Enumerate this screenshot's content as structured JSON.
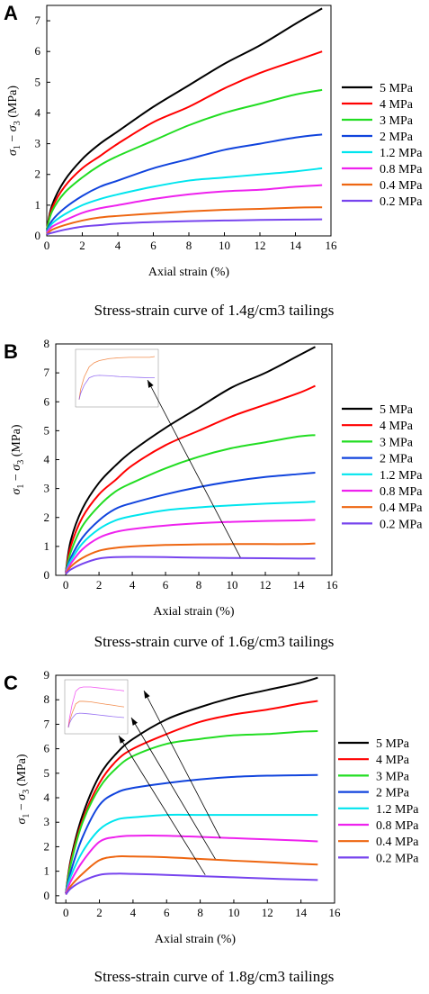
{
  "chart_data": [
    {
      "panel": "A",
      "type": "line",
      "caption": "Stress-strain curve of 1.4g/cm3 tailings",
      "xlabel": "Axial strain (%)",
      "ylabel": "σ1 − σ3 (MPa)",
      "xlim": [
        0,
        16
      ],
      "ylim": [
        0,
        7.5
      ],
      "xticks": [
        "0",
        "2",
        "4",
        "6",
        "8",
        "10",
        "12",
        "14",
        "16"
      ],
      "yticks": [
        "0",
        "1",
        "2",
        "3",
        "4",
        "5",
        "6",
        "7"
      ],
      "x": [
        0,
        0.3,
        1,
        2,
        3,
        4,
        6,
        8,
        10,
        12,
        14,
        15.5
      ],
      "series": [
        {
          "name": "5 MPa",
          "color": "#000000",
          "values": [
            0.2,
            1.0,
            1.8,
            2.5,
            3.0,
            3.4,
            4.2,
            4.9,
            5.6,
            6.2,
            6.9,
            7.4
          ]
        },
        {
          "name": "4 MPa",
          "color": "#ff0000",
          "values": [
            0.2,
            0.9,
            1.6,
            2.2,
            2.6,
            3.0,
            3.7,
            4.2,
            4.8,
            5.3,
            5.7,
            6.0
          ]
        },
        {
          "name": "3 MPa",
          "color": "#22dd22",
          "values": [
            0.2,
            0.8,
            1.4,
            1.9,
            2.3,
            2.6,
            3.1,
            3.6,
            4.0,
            4.3,
            4.6,
            4.75
          ]
        },
        {
          "name": "2 MPa",
          "color": "#1144dd",
          "values": [
            0.15,
            0.5,
            0.9,
            1.3,
            1.6,
            1.8,
            2.2,
            2.5,
            2.8,
            3.0,
            3.2,
            3.3
          ]
        },
        {
          "name": "1.2 MPa",
          "color": "#00e5ee",
          "values": [
            0.1,
            0.4,
            0.7,
            1.0,
            1.2,
            1.35,
            1.6,
            1.8,
            1.9,
            2.0,
            2.1,
            2.2
          ]
        },
        {
          "name": "0.8 MPa",
          "color": "#ee22ee",
          "values": [
            0.1,
            0.3,
            0.5,
            0.75,
            0.9,
            1.0,
            1.2,
            1.35,
            1.45,
            1.5,
            1.6,
            1.65
          ]
        },
        {
          "name": "0.4 MPa",
          "color": "#ee6611",
          "values": [
            0.05,
            0.2,
            0.35,
            0.5,
            0.6,
            0.65,
            0.73,
            0.8,
            0.85,
            0.88,
            0.92,
            0.93
          ]
        },
        {
          "name": "0.2 MPa",
          "color": "#7744ee",
          "values": [
            0.05,
            0.1,
            0.2,
            0.3,
            0.35,
            0.4,
            0.45,
            0.48,
            0.5,
            0.52,
            0.53,
            0.54
          ]
        }
      ]
    },
    {
      "panel": "B",
      "type": "line",
      "caption": "Stress-strain curve of 1.6g/cm3 tailings",
      "xlabel": "Axial strain (%)",
      "ylabel": "σ1 − σ3 (MPa)",
      "xlim": [
        -0.6,
        16
      ],
      "ylim": [
        0,
        8
      ],
      "xticks": [
        "0",
        "2",
        "4",
        "6",
        "8",
        "10",
        "12",
        "14",
        "16"
      ],
      "yticks": [
        "0",
        "1",
        "2",
        "3",
        "4",
        "5",
        "6",
        "7",
        "8"
      ],
      "x": [
        0,
        0.3,
        1,
        2,
        3,
        4,
        6,
        8,
        10,
        12,
        14,
        15
      ],
      "series": [
        {
          "name": "5 MPa",
          "color": "#000000",
          "values": [
            0.1,
            1.2,
            2.3,
            3.2,
            3.8,
            4.3,
            5.1,
            5.8,
            6.5,
            7.0,
            7.6,
            7.9
          ]
        },
        {
          "name": "4 MPa",
          "color": "#ff0000",
          "values": [
            0.1,
            1.0,
            2.0,
            2.8,
            3.3,
            3.8,
            4.5,
            5.0,
            5.5,
            5.9,
            6.3,
            6.55
          ]
        },
        {
          "name": "3 MPa",
          "color": "#22dd22",
          "values": [
            0.1,
            0.8,
            1.7,
            2.4,
            2.9,
            3.2,
            3.7,
            4.1,
            4.4,
            4.6,
            4.8,
            4.85
          ]
        },
        {
          "name": "2 MPa",
          "color": "#1144dd",
          "values": [
            0.1,
            0.6,
            1.3,
            1.9,
            2.3,
            2.5,
            2.8,
            3.05,
            3.25,
            3.4,
            3.5,
            3.55
          ]
        },
        {
          "name": "1.2 MPa",
          "color": "#00e5ee",
          "values": [
            0.1,
            0.5,
            1.1,
            1.6,
            1.9,
            2.05,
            2.25,
            2.35,
            2.42,
            2.48,
            2.52,
            2.55
          ]
        },
        {
          "name": "0.8 MPa",
          "color": "#ee22ee",
          "values": [
            0.1,
            0.4,
            0.9,
            1.3,
            1.5,
            1.6,
            1.72,
            1.8,
            1.85,
            1.88,
            1.9,
            1.92
          ]
        },
        {
          "name": "0.4 MPa",
          "color": "#ee6611",
          "values": [
            0.05,
            0.3,
            0.6,
            0.85,
            0.95,
            1.0,
            1.05,
            1.07,
            1.08,
            1.08,
            1.08,
            1.1
          ]
        },
        {
          "name": "0.2 MPa",
          "color": "#7744ee",
          "values": [
            0.05,
            0.2,
            0.4,
            0.58,
            0.63,
            0.64,
            0.63,
            0.61,
            0.6,
            0.59,
            0.58,
            0.58
          ]
        }
      ]
    },
    {
      "panel": "C",
      "type": "line",
      "caption": "Stress-strain curve of 1.8g/cm3 tailings",
      "xlabel": "Axial strain (%)",
      "ylabel": "σ1 − σ3 (MPa)",
      "xlim": [
        -0.6,
        16
      ],
      "ylim": [
        -0.3,
        9
      ],
      "xticks": [
        "0",
        "2",
        "4",
        "6",
        "8",
        "10",
        "12",
        "14",
        "16"
      ],
      "yticks": [
        "0",
        "1",
        "2",
        "3",
        "4",
        "5",
        "6",
        "7",
        "8",
        "9"
      ],
      "x": [
        0,
        0.3,
        1,
        2,
        3,
        4,
        6,
        8,
        10,
        12,
        14,
        15
      ],
      "series": [
        {
          "name": "5 MPa",
          "color": "#000000",
          "values": [
            0.1,
            1.5,
            3.3,
            4.9,
            5.8,
            6.4,
            7.2,
            7.7,
            8.1,
            8.4,
            8.7,
            8.9
          ]
        },
        {
          "name": "4 MPa",
          "color": "#ff0000",
          "values": [
            0.1,
            1.4,
            3.1,
            4.6,
            5.5,
            6.0,
            6.6,
            7.1,
            7.4,
            7.6,
            7.85,
            7.95
          ]
        },
        {
          "name": "3 MPa",
          "color": "#22dd22",
          "values": [
            0.1,
            1.3,
            3.0,
            4.4,
            5.2,
            5.7,
            6.2,
            6.4,
            6.55,
            6.6,
            6.7,
            6.72
          ]
        },
        {
          "name": "2 MPa",
          "color": "#1144dd",
          "values": [
            0.1,
            1.0,
            2.4,
            3.7,
            4.2,
            4.4,
            4.6,
            4.75,
            4.85,
            4.9,
            4.92,
            4.93
          ]
        },
        {
          "name": "1.2 MPa",
          "color": "#00e5ee",
          "values": [
            0.1,
            0.8,
            1.8,
            2.7,
            3.1,
            3.2,
            3.3,
            3.3,
            3.3,
            3.3,
            3.3,
            3.3
          ]
        },
        {
          "name": "0.8 MPa",
          "color": "#ee22ee",
          "values": [
            0.1,
            0.6,
            1.4,
            2.2,
            2.4,
            2.45,
            2.45,
            2.4,
            2.35,
            2.3,
            2.25,
            2.22
          ]
        },
        {
          "name": "0.4 MPa",
          "color": "#ee6611",
          "values": [
            0.05,
            0.4,
            0.9,
            1.45,
            1.6,
            1.6,
            1.57,
            1.5,
            1.43,
            1.37,
            1.3,
            1.27
          ]
        },
        {
          "name": "0.2 MPa",
          "color": "#7744ee",
          "values": [
            0.05,
            0.3,
            0.6,
            0.85,
            0.9,
            0.89,
            0.85,
            0.8,
            0.75,
            0.7,
            0.66,
            0.64
          ]
        }
      ]
    }
  ]
}
